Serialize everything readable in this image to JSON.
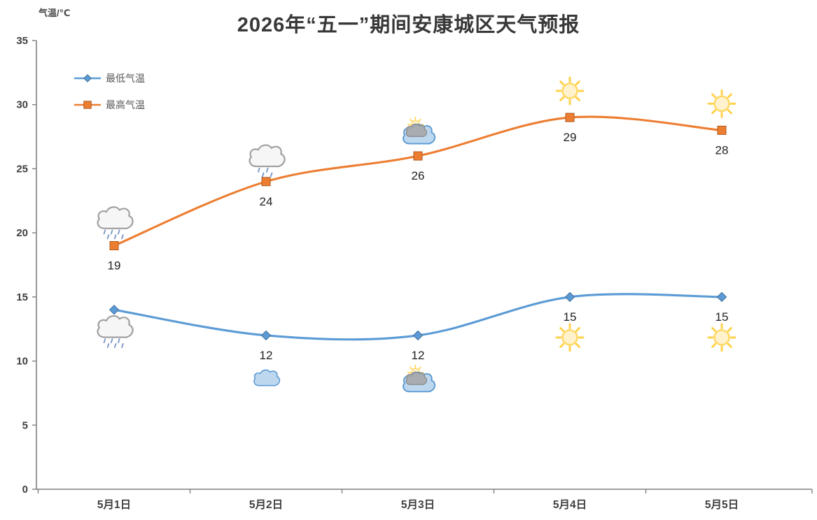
{
  "chart_data": {
    "type": "line",
    "title": "2026年“五一”期间安康城区天气预报",
    "ylabel": "气温/℃",
    "categories": [
      "5月1日",
      "5月2日",
      "5月3日",
      "5月4日",
      "5月5日"
    ],
    "series": [
      {
        "name": "最低气温",
        "values": [
          14,
          12,
          12,
          15,
          15
        ],
        "data_labels": [
          "",
          "12",
          "12",
          "15",
          "15"
        ],
        "color": "#5B9BD5",
        "marker": "diamond",
        "marker_border": "#41719C"
      },
      {
        "name": "最高气温",
        "values": [
          19,
          24,
          26,
          29,
          28
        ],
        "data_labels": [
          "19",
          "24",
          "26",
          "29",
          "28"
        ],
        "color": "#ED7D31",
        "marker": "square",
        "marker_border": "#AE5A21"
      }
    ],
    "ylim": [
      0,
      35
    ],
    "ytick_step": 5,
    "grid": false,
    "line_style": "smooth",
    "legend": {
      "position": "top-left-inside",
      "entries": [
        "最低气温",
        "最高气温"
      ]
    },
    "weather_icons": {
      "above_max_series": [
        "rain-icon",
        "light-rain-icon",
        "sun-behind-cloud-icon",
        "sun-icon",
        "sun-icon"
      ],
      "below_min_series": [
        "rain-icon",
        "cloud-icon",
        "sun-behind-cloud-icon",
        "sun-icon",
        "sun-icon"
      ]
    },
    "colors": {
      "axis": "#808080",
      "tick_label": "#3f3f3f",
      "data_label": "#1f1f1f",
      "legend_text": "#595959",
      "sun_ray": "#FFD24D",
      "sun_fill": "#FFF2CC",
      "sun_border": "#FFD966",
      "gray_cloud_fill": "#f6f6f6",
      "gray_cloud_border": "#9e9e9e",
      "blue_cloud_fill": "#BDD7EE",
      "blue_cloud_border": "#5B9BD5",
      "rain_drop": "#7d99c7",
      "inner_cloud": "#a6a6a6"
    }
  }
}
